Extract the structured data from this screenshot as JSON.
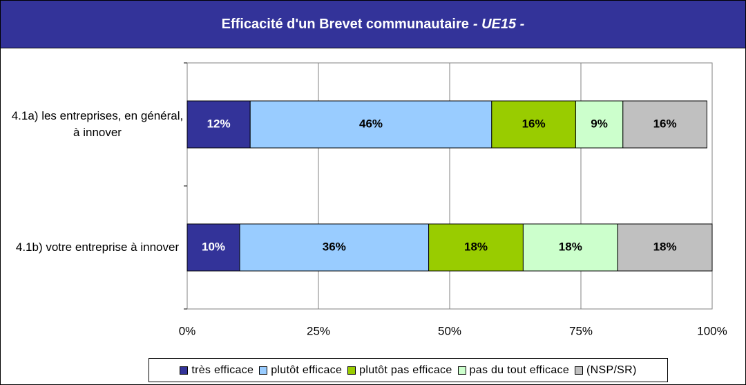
{
  "chart_data": {
    "type": "stacked-bar-horizontal",
    "title": "Efficacité d'un Brevet communautaire",
    "subtitle": "- UE15 -",
    "categories": [
      "4.1a) les entreprises, en général, à innover",
      "4.1b) votre entreprise à innover"
    ],
    "series": [
      {
        "name": "très efficace",
        "color": "#333399",
        "label_color": "#ffffff",
        "values": [
          12,
          10
        ],
        "value_labels": [
          "12%",
          "10%"
        ]
      },
      {
        "name": "plutôt efficace",
        "color": "#99ccff",
        "label_color": "#000000",
        "values": [
          46,
          36
        ],
        "value_labels": [
          "46%",
          "36%"
        ]
      },
      {
        "name": "plutôt pas efficace",
        "color": "#99cc00",
        "label_color": "#000000",
        "values": [
          16,
          18
        ],
        "value_labels": [
          "16%",
          "18%"
        ]
      },
      {
        "name": "pas du tout efficace",
        "color": "#ccffcc",
        "label_color": "#000000",
        "values": [
          9,
          18
        ],
        "value_labels": [
          "9%",
          "18%"
        ]
      },
      {
        "name": "(NSP/SR)",
        "color": "#c0c0c0",
        "label_color": "#000000",
        "values": [
          16,
          18
        ],
        "value_labels": [
          "16%",
          "18%"
        ]
      }
    ],
    "xlim": [
      0,
      100
    ],
    "xticks": [
      {
        "value": 0,
        "label": "0%"
      },
      {
        "value": 25,
        "label": "25%"
      },
      {
        "value": 50,
        "label": "50%"
      },
      {
        "value": 75,
        "label": "75%"
      },
      {
        "value": 100,
        "label": "100%"
      }
    ],
    "grid": true,
    "legend": "bottom"
  }
}
